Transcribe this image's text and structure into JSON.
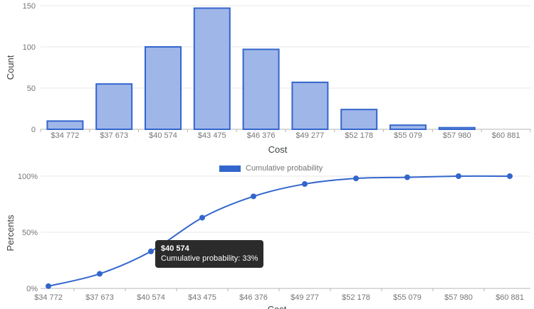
{
  "colors": {
    "accent": "#3366cc",
    "bar_fill": "#9fb6e8",
    "bar_stroke": "#3366cc",
    "grid": "#e7e7e7",
    "axis": "#b6b6b6",
    "tick_text": "#757575",
    "title_text": "#3c4043",
    "tooltip_bg": "#2b2b2b",
    "tooltip_text": "#ffffff"
  },
  "chart_data": [
    {
      "type": "bar",
      "xlabel": "Cost",
      "ylabel": "Count",
      "categories": [
        "$34 772",
        "$37 673",
        "$40 574",
        "$43 475",
        "$46 376",
        "$49 277",
        "$52 178",
        "$55 079",
        "$57 980",
        "$60 881"
      ],
      "values": [
        10,
        55,
        100,
        147,
        97,
        57,
        24,
        5,
        2,
        0
      ],
      "ylim": [
        0,
        150
      ],
      "yticks": [
        0,
        50,
        100,
        150
      ],
      "ytick_labels": [
        "0",
        "50",
        "100",
        "150"
      ],
      "grid": true,
      "legend_position": "none"
    },
    {
      "type": "line",
      "xlabel": "Cost",
      "ylabel": "Percents",
      "categories": [
        "$34 772",
        "$37 673",
        "$40 574",
        "$43 475",
        "$46 376",
        "$49 277",
        "$52 178",
        "$55 079",
        "$57 980",
        "$60 881"
      ],
      "series": [
        {
          "name": "Cumulative probability",
          "values": [
            2,
            13,
            33,
            63,
            82,
            93,
            98,
            99,
            100,
            100
          ]
        }
      ],
      "ylim": [
        0,
        100
      ],
      "yticks": [
        0,
        50,
        100
      ],
      "ytick_labels": [
        "0%",
        "50%",
        "100%"
      ],
      "grid": true,
      "legend_position": "top-center",
      "tooltip": {
        "title": "$40 574",
        "text": "Cumulative probability: 33%",
        "point_index": 2
      }
    }
  ]
}
